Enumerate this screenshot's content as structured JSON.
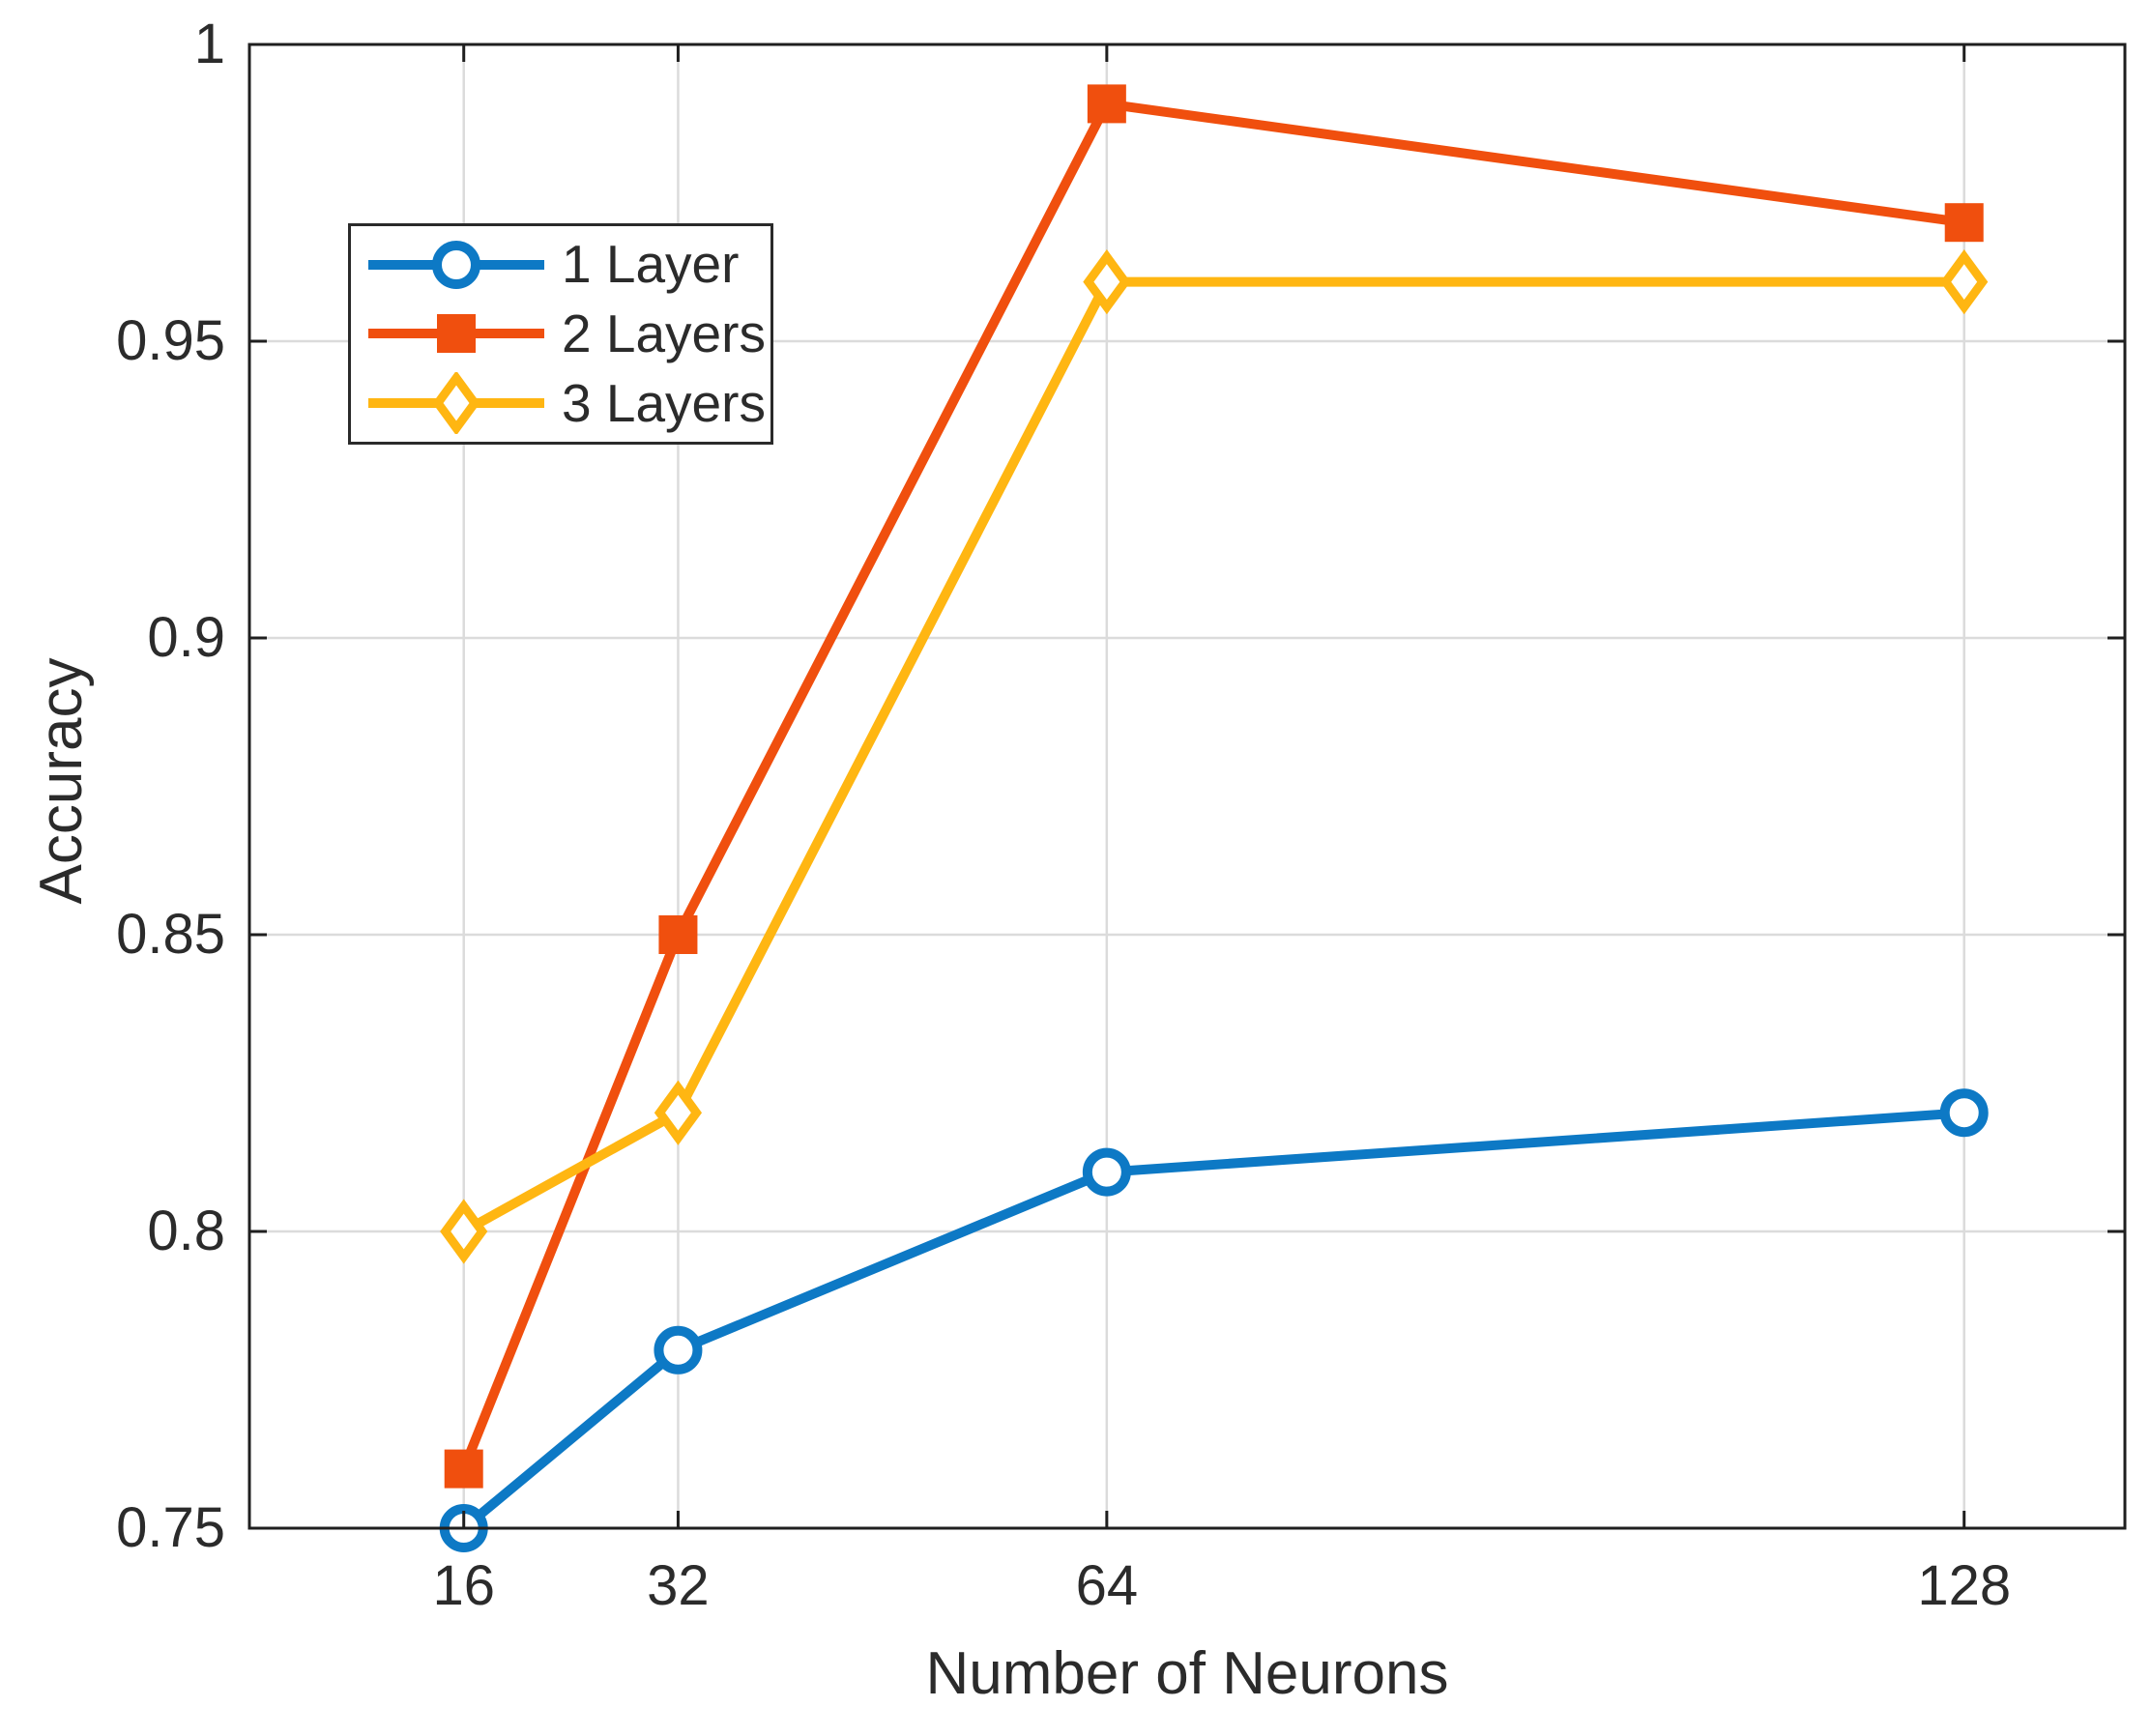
{
  "figure": {
    "background": "#ffffff"
  },
  "chart_data": {
    "type": "line",
    "title": "",
    "xlabel": "Number of Neurons",
    "ylabel": "Accuracy",
    "x": [
      16,
      32,
      64,
      128
    ],
    "xtick_labels": [
      "16",
      "32",
      "64",
      "128"
    ],
    "ytick_values": [
      0.75,
      0.8,
      0.85,
      0.9,
      0.95,
      1
    ],
    "ytick_labels": [
      "0.75",
      "0.8",
      "0.85",
      "0.9",
      "0.95",
      "1"
    ],
    "xlim": [
      0,
      140
    ],
    "ylim": [
      0.75,
      1
    ],
    "x_scale": "linear",
    "grid": true,
    "legend_position": "top-left",
    "series": [
      {
        "name": "1 Layer",
        "marker": "circle",
        "color": "#0d79c5",
        "values": [
          0.75,
          0.78,
          0.81,
          0.82
        ]
      },
      {
        "name": "2 Layers",
        "marker": "square",
        "color": "#f04f0e",
        "values": [
          0.76,
          0.85,
          0.99,
          0.97
        ]
      },
      {
        "name": "3 Layers",
        "marker": "diamond",
        "color": "#ffb612",
        "values": [
          0.8,
          0.82,
          0.96,
          0.96
        ]
      }
    ],
    "colors": {
      "grid": "#dbdbdb",
      "axis": "#1f1f1f",
      "text": "#2b2b2b",
      "legend_border": "#2a2a2a"
    }
  }
}
